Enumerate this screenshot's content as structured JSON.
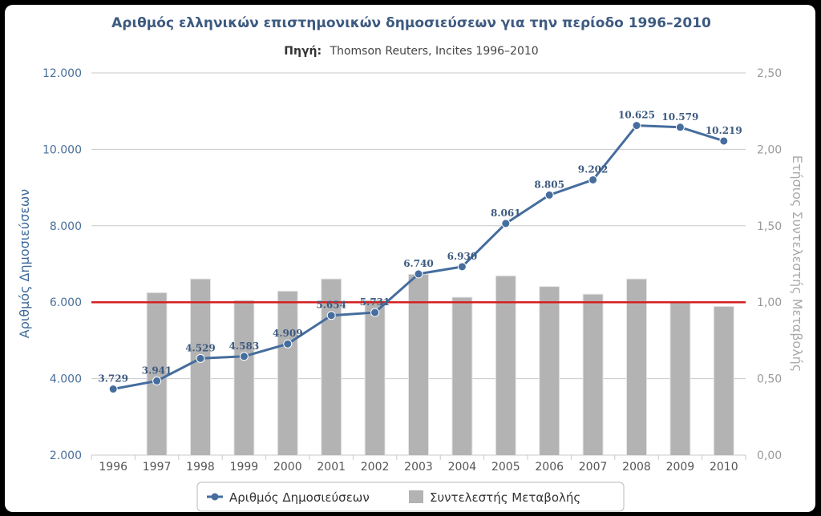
{
  "chart_data": {
    "type": "bar-line-combo",
    "title": "Αριθμός ελληνικών επιστημονικών δημοσιεύσεων για την περίοδο 1996–2010",
    "subtitle_label": "Πηγή:",
    "subtitle_text": "Thomson Reuters, Incites 1996–2010",
    "categories": [
      "1996",
      "1997",
      "1998",
      "1999",
      "2000",
      "2001",
      "2002",
      "2003",
      "2004",
      "2005",
      "2006",
      "2007",
      "2008",
      "2009",
      "2010"
    ],
    "y_left": {
      "label": "Αριθμός Δημοσιεύσεων",
      "min": 2000,
      "max": 12000,
      "ticks": [
        "2.000",
        "4.000",
        "6.000",
        "8.000",
        "10.000",
        "12.000"
      ]
    },
    "y_right": {
      "label": "Ετήσιος Συντελεστής Μεταβολής",
      "min": 0,
      "max": 2.5,
      "ticks": [
        "0,00",
        "0,50",
        "1,00",
        "1,50",
        "2,00",
        "2,50"
      ]
    },
    "series": [
      {
        "name": "Αριθμός Δημοσιεύσεων",
        "type": "line",
        "axis": "left",
        "color": "#456d9e",
        "values": [
          3729,
          3941,
          4529,
          4583,
          4909,
          5654,
          5731,
          6740,
          6930,
          8061,
          8805,
          9202,
          10625,
          10579,
          10219
        ],
        "labels": [
          "3.729",
          "3.941",
          "4.529",
          "4.583",
          "4.909",
          "5.654",
          "5.731",
          "6.740",
          "6.930",
          "8.061",
          "8.805",
          "9.202",
          "10.625",
          "10.579",
          "10.219"
        ]
      },
      {
        "name": "Συντελεστής Μεταβολής",
        "type": "bar",
        "axis": "right",
        "color": "#b3b3b3",
        "values": [
          null,
          1.06,
          1.15,
          1.01,
          1.07,
          1.15,
          1.01,
          1.18,
          1.03,
          1.17,
          1.1,
          1.05,
          1.15,
          1.0,
          0.97
        ]
      }
    ],
    "reference_line": {
      "axis": "right",
      "value": 1.0,
      "color": "#d42020"
    },
    "grid": true,
    "legend_position": "bottom-center"
  }
}
